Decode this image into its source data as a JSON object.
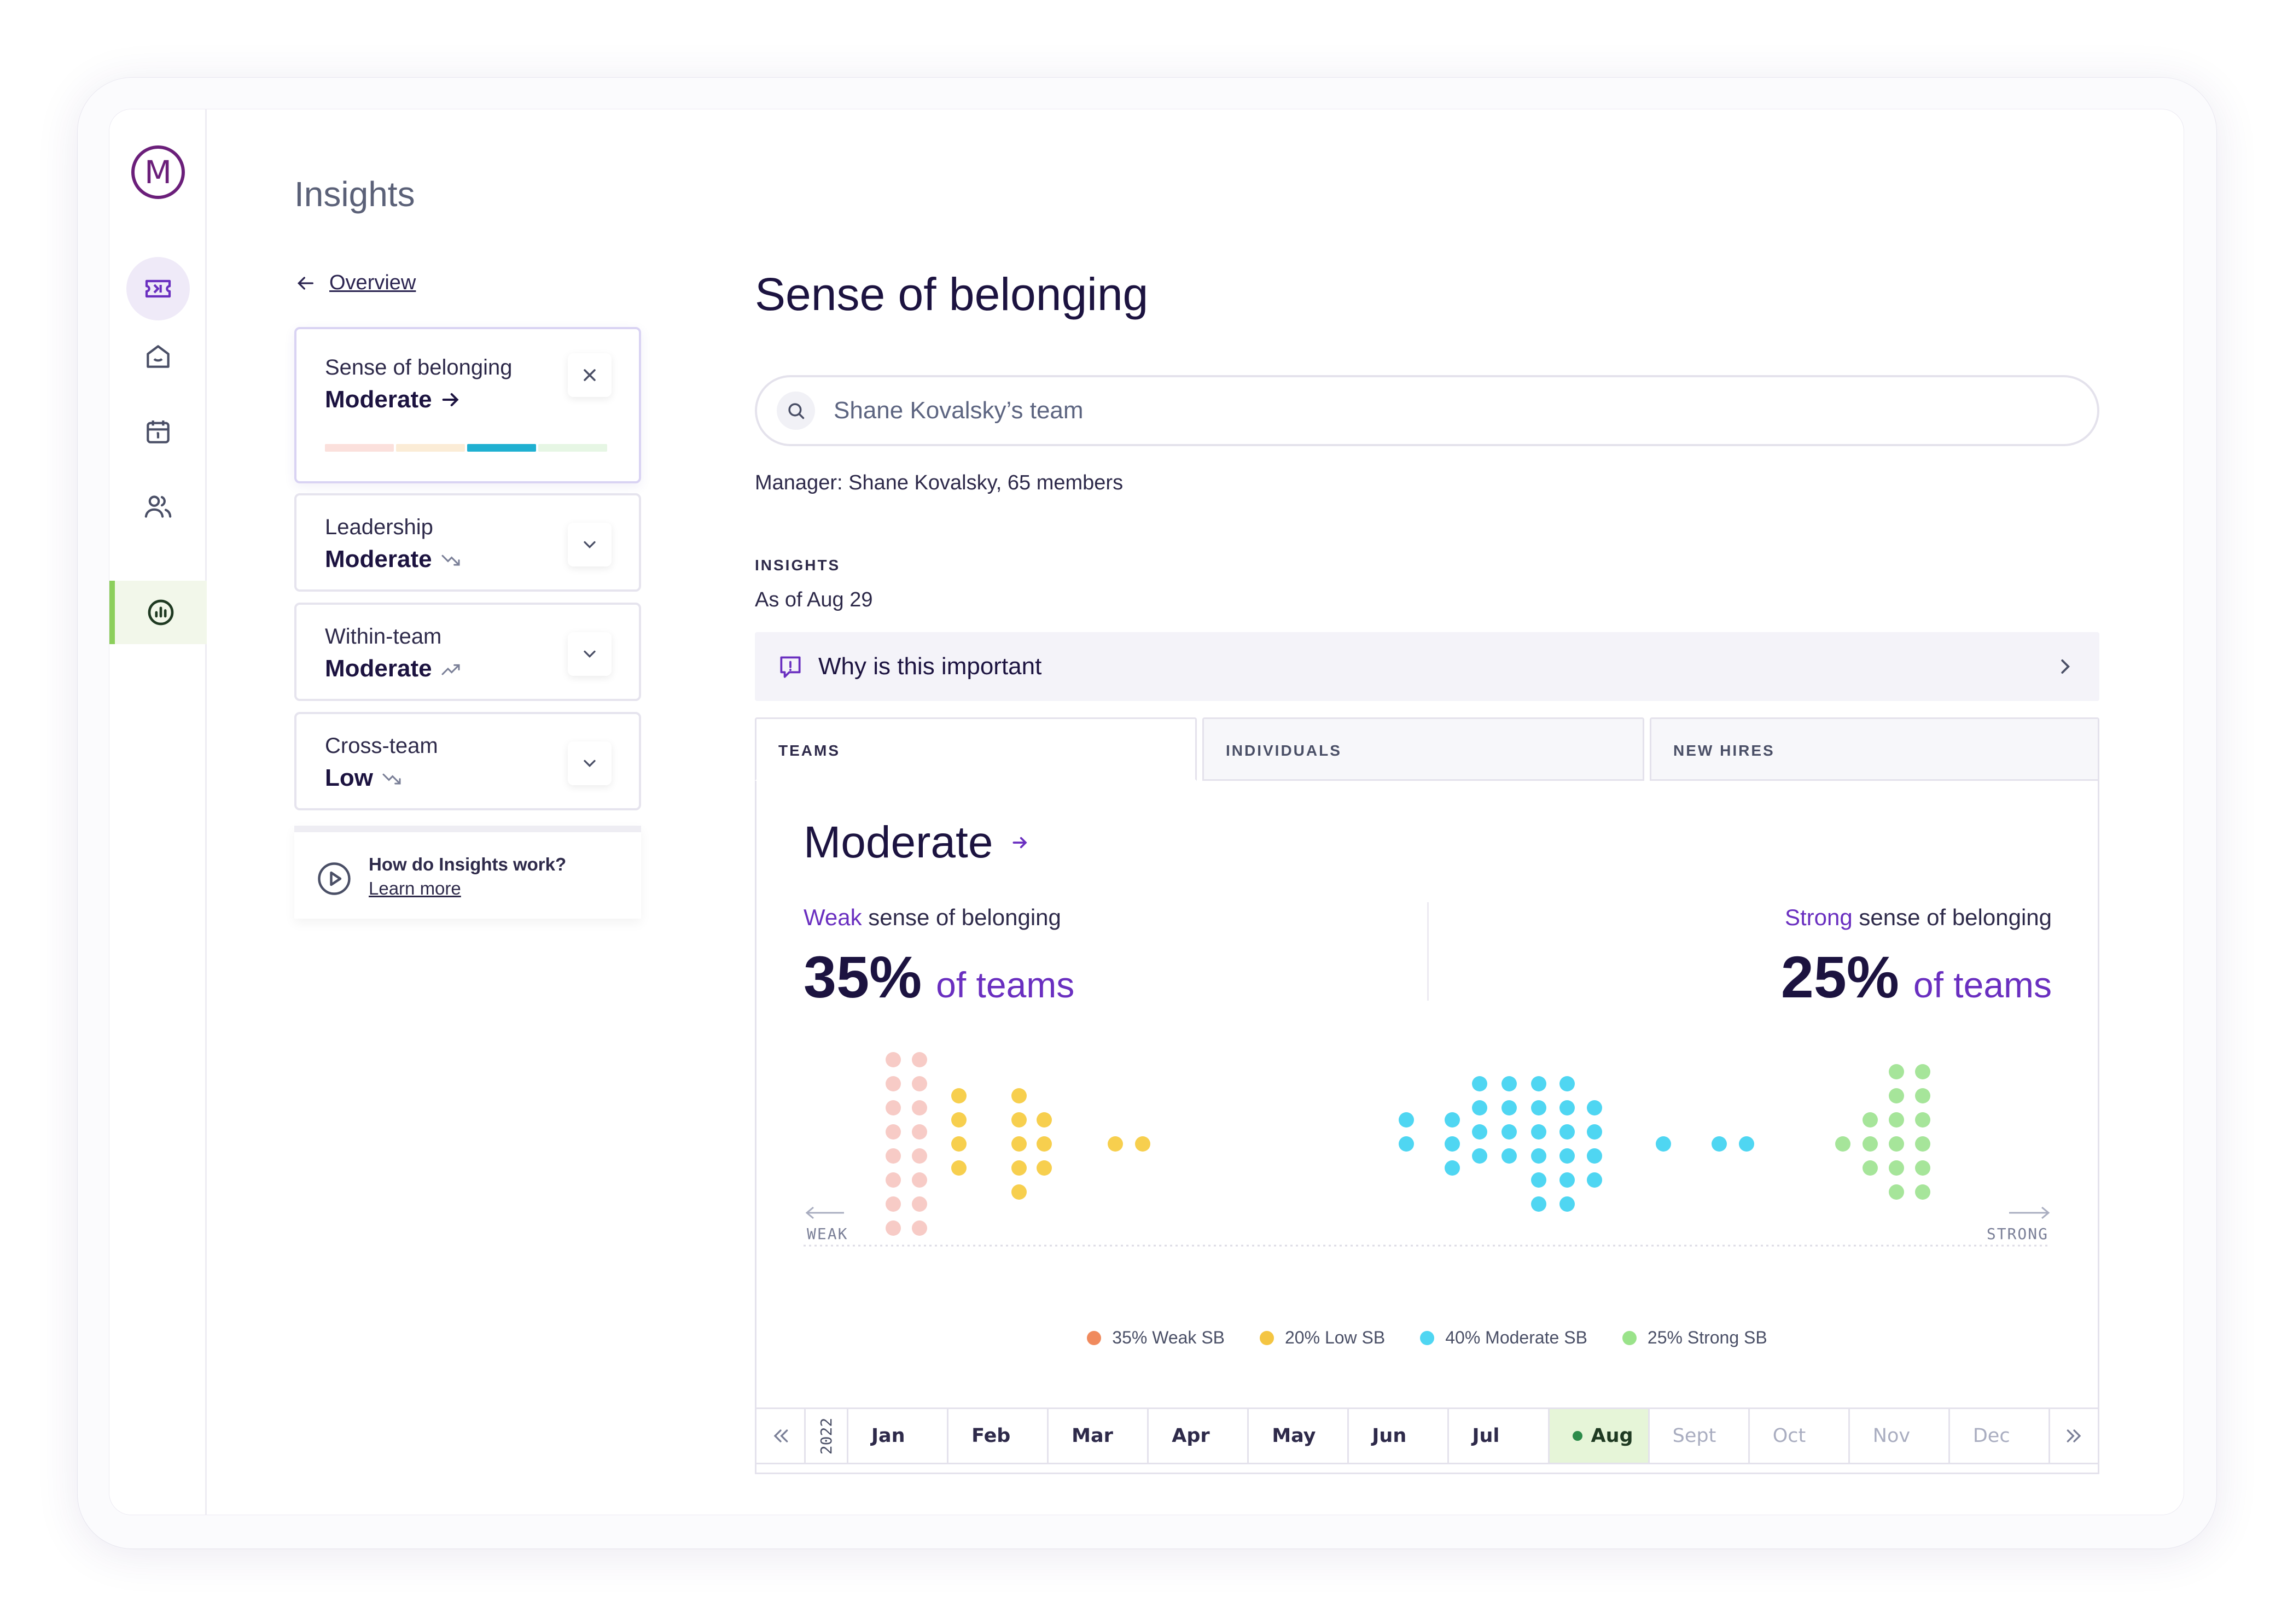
{
  "app": {
    "logo_letter": "M",
    "page_title": "Insights"
  },
  "sidebar": {
    "items": [
      {
        "name": "ticket-icon",
        "state": "highlight"
      },
      {
        "name": "home-icon",
        "state": "normal"
      },
      {
        "name": "calendar-icon",
        "state": "normal"
      },
      {
        "name": "people-icon",
        "state": "normal"
      },
      {
        "name": "chart-icon",
        "state": "active"
      }
    ]
  },
  "nav": {
    "back_label": "Overview"
  },
  "cards": [
    {
      "label": "Sense of belonging",
      "value": "Moderate",
      "trend": "arrow-right-icon",
      "control": "close-icon"
    },
    {
      "label": "Leadership",
      "value": "Moderate",
      "trend": "trend-down-icon",
      "control": "chevron-down-icon"
    },
    {
      "label": "Within-team",
      "value": "Moderate",
      "trend": "trend-up-icon",
      "control": "chevron-down-icon"
    },
    {
      "label": "Cross-team",
      "value": "Low",
      "trend": "trend-down-icon",
      "control": "chevron-down-icon"
    }
  ],
  "selected_card_level": {
    "segments": 4,
    "active_index": 2
  },
  "help": {
    "question": "How do Insights work?",
    "link": "Learn more"
  },
  "main": {
    "title": "Sense of belonging",
    "search_value": "Shane Kovalsky’s team",
    "manager_line": "Manager: Shane Kovalsky, 65 members",
    "insights_caption": "INSIGHTS",
    "as_of": "As of Aug 29",
    "why_label": "Why is this important"
  },
  "tabs": [
    {
      "label": "TEAMS",
      "active": true
    },
    {
      "label": "INDIVIDUALS",
      "active": false
    },
    {
      "label": "NEW HIRES",
      "active": false
    }
  ],
  "summary": {
    "level": "Moderate",
    "weak": {
      "emph": "Weak",
      "rest": " sense of belonging",
      "pct": "35%",
      "suffix": "of teams"
    },
    "strong": {
      "emph": "Strong",
      "rest": " sense of belonging",
      "pct": "25%",
      "suffix": "of teams"
    }
  },
  "chart_data": {
    "type": "scatter",
    "axis_left": "WEAK",
    "axis_right": "STRONG",
    "colors": {
      "weak": "#f7cbc6",
      "low": "#f7cf4e",
      "moderate": "#4fd6f2",
      "strong": "#a6e59a"
    },
    "columns": [
      {
        "cat": "weak",
        "rows": [
          0,
          1,
          2,
          3,
          4,
          5,
          6,
          7
        ]
      },
      {
        "cat": "weak",
        "rows": [
          0,
          1,
          2,
          3,
          4,
          5,
          6,
          7
        ]
      },
      {
        "cat": "low",
        "rows": [
          1.5,
          2.5,
          3.5,
          4.5
        ]
      },
      {
        "cat": "low",
        "rows": [
          1.5,
          2.5,
          3.5,
          4.5,
          5.5
        ]
      },
      {
        "cat": "low",
        "rows": [
          2.5,
          3.5,
          4.5
        ]
      },
      {
        "cat": "low",
        "rows": [
          3.5
        ]
      },
      {
        "cat": "low",
        "rows": [
          3.5
        ]
      },
      {
        "cat": "moderate",
        "rows": [
          2.5,
          3.5
        ]
      },
      {
        "cat": "moderate",
        "rows": [
          2.5,
          3.5,
          4.5
        ]
      },
      {
        "cat": "moderate",
        "rows": [
          1,
          2,
          3,
          4
        ]
      },
      {
        "cat": "moderate",
        "rows": [
          1,
          2,
          3,
          4
        ]
      },
      {
        "cat": "moderate",
        "rows": [
          1,
          2,
          3,
          4,
          5,
          6
        ]
      },
      {
        "cat": "moderate",
        "rows": [
          1,
          2,
          3,
          4,
          5,
          6
        ]
      },
      {
        "cat": "moderate",
        "rows": [
          2,
          3,
          4,
          5
        ]
      },
      {
        "cat": "moderate",
        "rows": [
          3.5
        ]
      },
      {
        "cat": "moderate",
        "rows": [
          3.5
        ]
      },
      {
        "cat": "moderate",
        "rows": [
          3.5
        ]
      },
      {
        "cat": "strong",
        "rows": [
          3.5
        ]
      },
      {
        "cat": "strong",
        "rows": [
          2.5,
          3.5,
          4.5
        ]
      },
      {
        "cat": "strong",
        "rows": [
          0.5,
          1.5,
          2.5,
          3.5,
          4.5,
          5.5
        ]
      },
      {
        "cat": "strong",
        "rows": [
          0.5,
          1.5,
          2.5,
          3.5,
          4.5,
          5.5
        ]
      }
    ]
  },
  "legend": [
    {
      "label": "35% Weak SB",
      "color": "#f08a5d"
    },
    {
      "label": "20% Low SB",
      "color": "#f4c542"
    },
    {
      "label": "40% Moderate SB",
      "color": "#4fd6f2"
    },
    {
      "label": "25% Strong SB",
      "color": "#9ae38a"
    }
  ],
  "timeline": {
    "year": "2022",
    "months": [
      {
        "label": "Jan",
        "state": "past"
      },
      {
        "label": "Feb",
        "state": "past"
      },
      {
        "label": "Mar",
        "state": "past"
      },
      {
        "label": "Apr",
        "state": "past"
      },
      {
        "label": "May",
        "state": "past"
      },
      {
        "label": "Jun",
        "state": "past"
      },
      {
        "label": "Jul",
        "state": "past"
      },
      {
        "label": "Aug",
        "state": "current"
      },
      {
        "label": "Sept",
        "state": "future"
      },
      {
        "label": "Oct",
        "state": "future"
      },
      {
        "label": "Nov",
        "state": "future"
      },
      {
        "label": "Dec",
        "state": "future"
      }
    ]
  }
}
